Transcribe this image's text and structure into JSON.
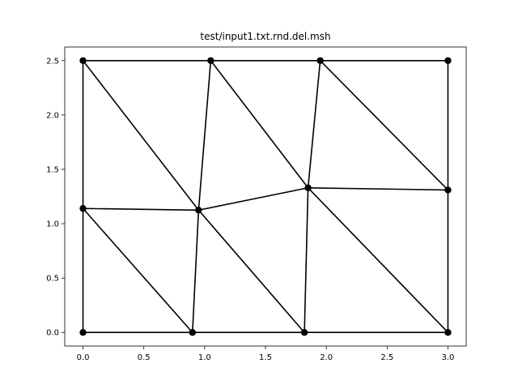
{
  "chart_data": {
    "type": "scatter",
    "title": "test/input1.txt.rnd.del.msh",
    "xlabel": "",
    "ylabel": "",
    "xlim": [
      -0.15,
      3.15
    ],
    "ylim": [
      -0.125,
      2.625
    ],
    "grid": false,
    "x_ticks": [
      0.0,
      0.5,
      1.0,
      1.5,
      2.0,
      2.5,
      3.0
    ],
    "y_ticks": [
      0.0,
      0.5,
      1.0,
      1.5,
      2.0,
      2.5
    ],
    "x_tick_labels": [
      "0.0",
      "0.5",
      "1.0",
      "1.5",
      "2.0",
      "2.5",
      "3.0"
    ],
    "y_tick_labels": [
      "0.0",
      "0.5",
      "1.0",
      "1.5",
      "2.0",
      "2.5"
    ],
    "nodes": [
      {
        "x": 0.0,
        "y": 0.0
      },
      {
        "x": 0.9,
        "y": 0.0
      },
      {
        "x": 1.82,
        "y": 0.0
      },
      {
        "x": 3.0,
        "y": 0.0
      },
      {
        "x": 0.0,
        "y": 1.14
      },
      {
        "x": 0.95,
        "y": 1.125
      },
      {
        "x": 1.85,
        "y": 1.33
      },
      {
        "x": 3.0,
        "y": 1.31
      },
      {
        "x": 0.0,
        "y": 2.5
      },
      {
        "x": 1.05,
        "y": 2.5
      },
      {
        "x": 1.95,
        "y": 2.5
      },
      {
        "x": 3.0,
        "y": 2.5
      }
    ],
    "edges": [
      [
        0,
        1
      ],
      [
        1,
        2
      ],
      [
        2,
        3
      ],
      [
        8,
        9
      ],
      [
        9,
        10
      ],
      [
        10,
        11
      ],
      [
        0,
        4
      ],
      [
        4,
        8
      ],
      [
        3,
        7
      ],
      [
        7,
        11
      ],
      [
        4,
        5
      ],
      [
        5,
        6
      ],
      [
        6,
        7
      ],
      [
        4,
        1
      ],
      [
        1,
        5
      ],
      [
        5,
        2
      ],
      [
        2,
        6
      ],
      [
        6,
        3
      ],
      [
        8,
        5
      ],
      [
        5,
        9
      ],
      [
        9,
        6
      ],
      [
        6,
        10
      ],
      [
        10,
        7
      ]
    ],
    "line_color": "#000000",
    "marker_color": "#000000"
  }
}
